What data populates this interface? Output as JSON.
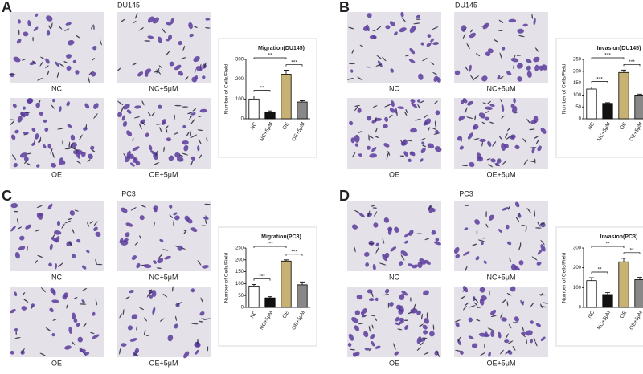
{
  "panels": [
    {
      "letter": "A",
      "cell_line": "DU145",
      "image_labels": [
        "NC",
        "NC+5μM",
        "OE",
        "OE+5μM"
      ]
    },
    {
      "letter": "B",
      "cell_line": "DU145",
      "image_labels": [
        "NC",
        "NC+5μM",
        "OE",
        "OE+5μM"
      ]
    },
    {
      "letter": "C",
      "cell_line": "PC3",
      "image_labels": [
        "NC",
        "NC+5μM",
        "OE",
        "OE+5μM"
      ]
    },
    {
      "letter": "D",
      "cell_line": "PC3",
      "image_labels": [
        "NC",
        "NC+5μM",
        "OE",
        "OE+5μM"
      ]
    }
  ],
  "chart_data": [
    {
      "type": "bar",
      "title": "Migration(DU145)",
      "y_label": "Number of Cells/Field",
      "categories": [
        "NC",
        "NC+5μM",
        "OE",
        "OE+5μM"
      ],
      "values": [
        100,
        35,
        225,
        85
      ],
      "errors": [
        15,
        5,
        20,
        6
      ],
      "colors": [
        "#ffffff",
        "#111111",
        "#c8b273",
        "#888888"
      ],
      "ylim": [
        0,
        300
      ],
      "yticks": [
        0,
        100,
        200,
        300
      ],
      "annotations": [
        "**",
        "**",
        "***"
      ]
    },
    {
      "type": "bar",
      "title": "Invasion(DU145)",
      "y_label": "Number of Cells/Field",
      "categories": [
        "NC",
        "NC+5μM",
        "OE",
        "OE+5μM"
      ],
      "values": [
        125,
        65,
        195,
        100
      ],
      "errors": [
        8,
        3,
        10,
        4
      ],
      "colors": [
        "#ffffff",
        "#111111",
        "#c8b273",
        "#888888"
      ],
      "ylim": [
        0,
        250
      ],
      "yticks": [
        0,
        50,
        100,
        150,
        200,
        250
      ],
      "annotations": [
        "***",
        "***",
        "***"
      ]
    },
    {
      "type": "bar",
      "title": "Migration(PC3)",
      "y_label": "Number of Cells/Field",
      "categories": [
        "NC",
        "NC+5μM",
        "OE",
        "OE+5μM"
      ],
      "values": [
        90,
        40,
        195,
        95
      ],
      "errors": [
        6,
        5,
        5,
        12
      ],
      "colors": [
        "#ffffff",
        "#111111",
        "#c8b273",
        "#888888"
      ],
      "ylim": [
        0,
        250
      ],
      "yticks": [
        0,
        50,
        100,
        150,
        200,
        250
      ],
      "annotations": [
        "***",
        "***",
        "***"
      ]
    },
    {
      "type": "bar",
      "title": "Invasion(PC3)",
      "y_label": "Number of Cells/Field",
      "categories": [
        "NC",
        "NC+5μM",
        "OE",
        "OE+5μM"
      ],
      "values": [
        135,
        65,
        230,
        140
      ],
      "errors": [
        15,
        10,
        18,
        12
      ],
      "colors": [
        "#ffffff",
        "#111111",
        "#c8b273",
        "#888888"
      ],
      "ylim": [
        0,
        300
      ],
      "yticks": [
        0,
        100,
        200,
        300
      ],
      "annotations": [
        "**",
        "**",
        "**"
      ]
    }
  ]
}
